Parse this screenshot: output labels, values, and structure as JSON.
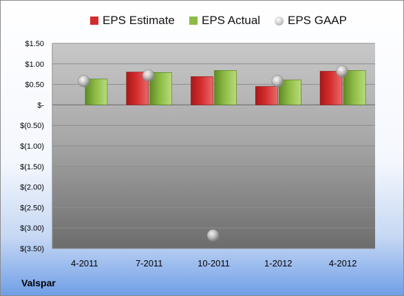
{
  "company": "Valspar",
  "colors": {
    "estimate": "#d42c2c",
    "actual": "#8dbb45",
    "gaap": "#c4c4c4"
  },
  "chart_data": {
    "type": "bar",
    "title": "",
    "xlabel": "",
    "ylabel": "",
    "ylim": [
      -3.5,
      1.5
    ],
    "grid": true,
    "legend_position": "top",
    "categories": [
      "4-2011",
      "7-2011",
      "10-2011",
      "1-2012",
      "4-2012"
    ],
    "series": [
      {
        "name": "EPS Estimate",
        "kind": "bar",
        "values": [
          null,
          0.8,
          0.69,
          0.45,
          0.82
        ]
      },
      {
        "name": "EPS Actual",
        "kind": "bar",
        "values": [
          0.63,
          0.79,
          0.84,
          0.61,
          0.84
        ]
      },
      {
        "name": "EPS GAAP",
        "kind": "marker",
        "values": [
          0.58,
          0.72,
          -3.18,
          0.58,
          0.82
        ]
      }
    ],
    "y_ticks": [
      {
        "value": 1.5,
        "label": "$1.50"
      },
      {
        "value": 1.0,
        "label": "$1.00"
      },
      {
        "value": 0.5,
        "label": "$0.50"
      },
      {
        "value": 0,
        "label": "$-"
      },
      {
        "value": -0.5,
        "label": "$(0.50)"
      },
      {
        "value": -1.0,
        "label": "$(1.00)"
      },
      {
        "value": -1.5,
        "label": "$(1.50)"
      },
      {
        "value": -2.0,
        "label": "$(2.00)"
      },
      {
        "value": -2.5,
        "label": "$(2.50)"
      },
      {
        "value": -3.0,
        "label": "$(3.00)"
      },
      {
        "value": -3.5,
        "label": "$(3.50)"
      }
    ]
  }
}
